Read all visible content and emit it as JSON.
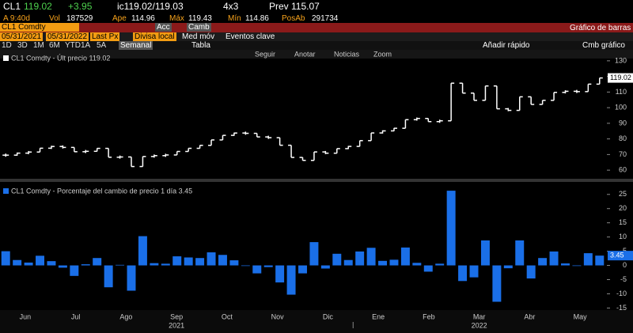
{
  "header": {
    "ticker": "CL1",
    "last": "119.02",
    "change": "+3.95",
    "bidask": "ic119.02/119.03",
    "size": "4x3",
    "prev_label": "Prev",
    "prev": "115.07",
    "time": "A 9:40d",
    "vol_label": "Vol",
    "vol": "187529",
    "open_label": "Ape",
    "open": "114.96",
    "high_label": "Máx",
    "high": "119.43",
    "low_label": "Mín",
    "low": "114.86",
    "oi_label": "PosAb",
    "oi": "291734"
  },
  "toolbar": {
    "security": "CL1 Comdty",
    "actions": "Acc",
    "change": "Camb",
    "chart_type": "Gráfico de barras",
    "start": "05/31/2021",
    "end": "05/31/2022",
    "field": "Last Px",
    "currency": "Divisa local",
    "moving_avg": "Med móv",
    "events": "Eventos clave",
    "ranges": [
      "1D",
      "3D",
      "1M",
      "6M",
      "YTD",
      "1A",
      "5A"
    ],
    "period": "Semanal",
    "table": "Tabla",
    "quick_add": "Añadir rápido",
    "change_chart": "Cmb gráfico",
    "tools": [
      "Seguir",
      "Anotar",
      "Noticias",
      "Zoom"
    ]
  },
  "chart_data": [
    {
      "type": "ohlc",
      "legend": "CL1 Comdty - Últ precio 119.02",
      "last_label": "119.02",
      "color": "#ffffff",
      "values": [
        69.6,
        70.9,
        71.6,
        74.05,
        75.16,
        74.56,
        71.81,
        72.07,
        73.95,
        68.28,
        68.44,
        62.32,
        68.74,
        69.29,
        69.72,
        71.97,
        73.98,
        75.88,
        79.35,
        82.28,
        83.76,
        83.57,
        81.27,
        80.79,
        75.94,
        68.15,
        66.26,
        71.67,
        70.86,
        73.79,
        75.21,
        78.9,
        83.82,
        85.14,
        86.82,
        92.31,
        93.1,
        91.07,
        91.59,
        115.68,
        109.33,
        104.7,
        113.9,
        99.27,
        98.26,
        106.95,
        102.07,
        104.69,
        109.77,
        110.49,
        110.28,
        115.07,
        119.02
      ],
      "ylim": [
        55,
        135
      ],
      "yticks": [
        60,
        70,
        80,
        90,
        100,
        110,
        120,
        130
      ]
    },
    {
      "type": "bar",
      "legend": "CL1 Comdty - Porcentaje del cambio de precio 1 día 3.45",
      "last_label": "3.45",
      "color": "#1a6fe8",
      "values": [
        5,
        1.9,
        1.0,
        3.4,
        1.5,
        -0.8,
        -3.7,
        0.4,
        2.6,
        -7.7,
        0.2,
        -8.9,
        10.3,
        0.8,
        0.6,
        3.2,
        2.8,
        2.6,
        4.6,
        3.7,
        1.8,
        -0.2,
        -2.8,
        -0.6,
        -6.0,
        -10.3,
        -2.8,
        8.2,
        -1.1,
        4.1,
        1.9,
        4.9,
        6.2,
        1.6,
        2.0,
        6.3,
        0.9,
        -2.2,
        0.6,
        26.3,
        -5.5,
        -4.2,
        8.8,
        -12.8,
        -1.0,
        8.8,
        -4.6,
        2.6,
        4.9,
        0.7,
        -0.2,
        4.3,
        3.45
      ],
      "ylim": [
        -16,
        28
      ],
      "yticks": [
        -15,
        -10,
        -5,
        0,
        5,
        10,
        15,
        20,
        25
      ],
      "months": [
        "Jun",
        "Jul",
        "Ago",
        "Sep",
        "Oct",
        "Nov",
        "Dic",
        "Ene",
        "Feb",
        "Mar",
        "Abr",
        "May"
      ],
      "years": [
        "2021",
        "2022"
      ]
    }
  ]
}
